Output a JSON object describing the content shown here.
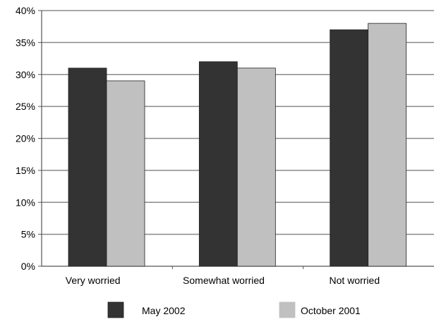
{
  "chart_data": {
    "type": "bar",
    "categories": [
      "Very worried",
      "Somewhat worried",
      "Not worried"
    ],
    "series": [
      {
        "name": "May 2002",
        "color": "#333333",
        "values": [
          31,
          32,
          37
        ]
      },
      {
        "name": "October 2001",
        "color": "#c0c0c0",
        "values": [
          29,
          31,
          38
        ]
      }
    ],
    "y_ticks": [
      "0%",
      "5%",
      "10%",
      "15%",
      "20%",
      "25%",
      "30%",
      "35%",
      "40%"
    ],
    "ylim": [
      0,
      40
    ],
    "ytick_step": 5,
    "grid": true,
    "legend_position": "bottom",
    "title": "",
    "xlabel": "",
    "ylabel": ""
  }
}
